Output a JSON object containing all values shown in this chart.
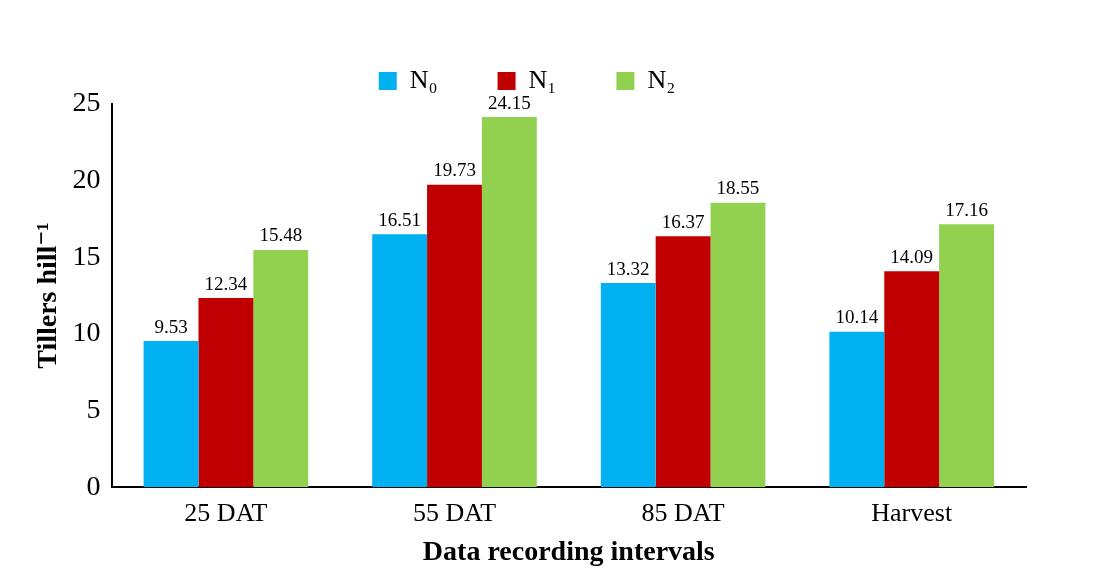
{
  "chart_data": {
    "type": "bar",
    "xlabel": "Data recording intervals",
    "ylabel": "Tillers hill⁻¹",
    "categories": [
      "25 DAT",
      "55 DAT",
      "85 DAT",
      "Harvest"
    ],
    "series": [
      {
        "name": "N₀",
        "color": "#00b0f0",
        "values": [
          9.53,
          16.51,
          13.32,
          10.14
        ]
      },
      {
        "name": "N₁",
        "color": "#c00000",
        "values": [
          12.34,
          19.73,
          16.37,
          14.09
        ]
      },
      {
        "name": "N₂",
        "color": "#92d050",
        "values": [
          15.48,
          24.15,
          18.55,
          17.16
        ]
      }
    ],
    "ylim": [
      0,
      25
    ],
    "yticks": [
      0,
      5,
      10,
      15,
      20,
      25
    ],
    "grid": false,
    "legend": "top",
    "data_labels": true
  }
}
